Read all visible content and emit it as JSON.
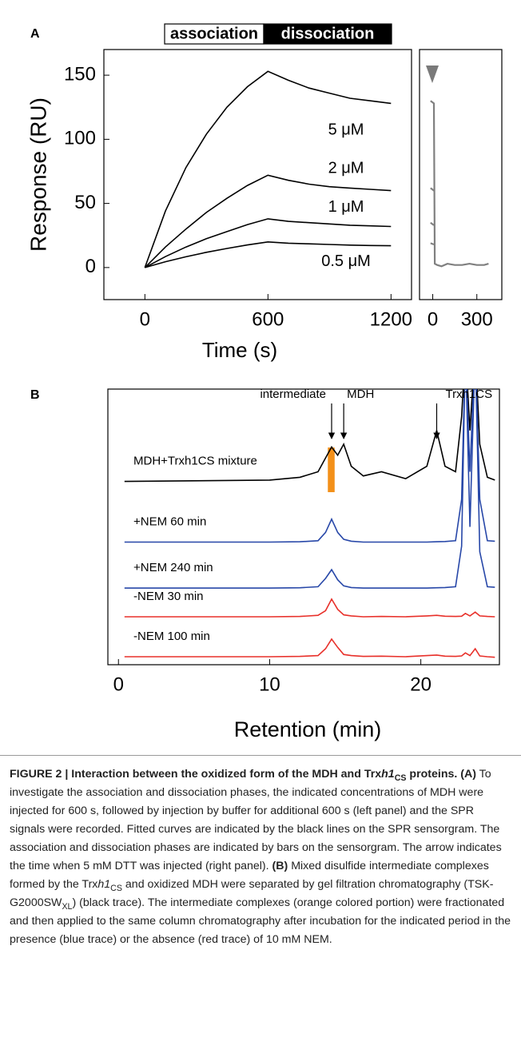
{
  "chart_data": [
    {
      "type": "line",
      "panel_label": "A",
      "ylabel": "Response (RU)",
      "xlabel": "Time (s)",
      "phases": [
        {
          "label": "association",
          "color": "#ffffff"
        },
        {
          "label": "dissociation",
          "color": "#000000"
        }
      ],
      "x": [
        0,
        100,
        200,
        300,
        400,
        500,
        600,
        700,
        800,
        900,
        1000,
        1100,
        1200
      ],
      "series": [
        {
          "name": "5 μM",
          "color": "#000000",
          "values": [
            0,
            44,
            78,
            104,
            125,
            141,
            153,
            146,
            140,
            136,
            132,
            130,
            128
          ]
        },
        {
          "name": "2 μM",
          "color": "#000000",
          "values": [
            0,
            16,
            30,
            43,
            54,
            64,
            72,
            68,
            65,
            63,
            62,
            61,
            60
          ]
        },
        {
          "name": "1 μM",
          "color": "#000000",
          "values": [
            0,
            8.5,
            16,
            22.5,
            28,
            33.5,
            38,
            36,
            35,
            34,
            33,
            32.5,
            32
          ]
        },
        {
          "name": "0.5 μM",
          "color": "#000000",
          "values": [
            0,
            4.5,
            8.4,
            11.9,
            14.9,
            17.6,
            20,
            19,
            18.5,
            18,
            17.5,
            17.2,
            17
          ]
        }
      ],
      "xlim": [
        -200,
        1300
      ],
      "ylim": [
        -25,
        170
      ],
      "xticks": [
        0,
        600,
        1200
      ],
      "yticks": [
        0,
        50,
        100,
        150
      ]
    },
    {
      "type": "line",
      "x": [
        -15,
        8,
        14,
        30,
        60,
        100,
        150,
        200,
        250,
        300,
        350,
        380
      ],
      "series": [
        {
          "color": "#808080",
          "values": [
            130,
            128,
            3,
            2,
            1,
            3,
            2,
            2,
            3,
            2,
            2,
            3
          ]
        },
        {
          "color": "#808080",
          "values": [
            62,
            60,
            null,
            null,
            null,
            null,
            null,
            null,
            null,
            null,
            null,
            null
          ]
        },
        {
          "color": "#808080",
          "values": [
            35,
            33,
            null,
            null,
            null,
            null,
            null,
            null,
            null,
            null,
            null,
            null
          ]
        },
        {
          "color": "#808080",
          "values": [
            19,
            18,
            null,
            null,
            null,
            null,
            null,
            null,
            null,
            null,
            null,
            null
          ]
        }
      ],
      "xlim": [
        -90,
        470
      ],
      "ylim": [
        -25,
        170
      ],
      "xticks": [
        0,
        300
      ]
    },
    {
      "type": "line",
      "panel_label": "B",
      "xlabel": "Retention (min)",
      "x": [
        0.4,
        10,
        12,
        13.2,
        13.7,
        14.1,
        14.5,
        14.9,
        15.4,
        16.2,
        17.4,
        19,
        20.4,
        21.05,
        21.6,
        22.3,
        22.7,
        22.95,
        23.25,
        23.6,
        23.9,
        24.4,
        24.9
      ],
      "series": [
        {
          "name": "MDH+Trxh1CS mixture",
          "color": "#000000",
          "values": [
            66.5,
            67,
            68,
            70,
            75,
            79,
            76,
            80,
            72,
            68.5,
            70,
            67.5,
            72,
            85,
            72,
            70,
            90,
            115,
            85,
            115,
            80,
            68,
            67
          ]
        },
        {
          "name": "+NEM 60 min",
          "color": "#2747a8",
          "values": [
            44.5,
            44.5,
            44.6,
            45,
            48,
            52.8,
            48,
            45.5,
            44.8,
            44.5,
            44.5,
            44.5,
            44.5,
            44.6,
            44.7,
            45,
            60,
            115,
            70,
            115,
            60,
            45,
            44.8
          ]
        },
        {
          "name": "+NEM 240 min",
          "color": "#2747a8",
          "values": [
            27.8,
            27.8,
            27.9,
            28.3,
            31.3,
            34.5,
            30.8,
            28.6,
            28,
            27.8,
            27.8,
            27.8,
            27.8,
            27.9,
            28,
            28.3,
            43,
            115,
            50,
            115,
            41,
            28.3,
            28.1
          ]
        },
        {
          "name": "-NEM 30 min",
          "color": "#e8302a",
          "values": [
            17.4,
            17.4,
            17.5,
            17.9,
            19.6,
            23.8,
            20.1,
            18.1,
            17.7,
            17.4,
            17.5,
            17.4,
            17.7,
            17.9,
            17.6,
            17.5,
            17.6,
            18.6,
            17.7,
            19.1,
            17.7,
            17.5,
            17.4
          ]
        },
        {
          "name": "-NEM 100 min",
          "color": "#e8302a",
          "values": [
            2.9,
            2.9,
            3,
            3.3,
            5.8,
            9.3,
            6.3,
            3.7,
            3.3,
            3,
            3.1,
            2.9,
            3.3,
            3.5,
            3.1,
            3,
            3.2,
            4.3,
            3.3,
            5.8,
            3.2,
            2.9,
            2.7
          ]
        }
      ],
      "highlight": {
        "x": [
          13.85,
          14.3
        ],
        "y": [
          62.6,
          78.8
        ],
        "color": "#f39019"
      },
      "annotations": [
        {
          "text": "intermediate",
          "x": 14.1
        },
        {
          "text": "MDH",
          "x": 14.9
        },
        {
          "text": "Trxh1CS",
          "x": 21.05
        }
      ],
      "xlim": [
        -0.7,
        25.2
      ],
      "ylim": [
        0,
        100
      ],
      "xticks": [
        0,
        10,
        20
      ]
    }
  ],
  "caption": {
    "segments": [
      {
        "text": "FIGURE 2 | Interaction between the oxidized form of the MDH and Trx",
        "style": "b"
      },
      {
        "text": "h1",
        "style": "bi"
      },
      {
        "text": "CS",
        "style": "bsub"
      },
      {
        "text": " proteins. (A)",
        "style": "b"
      },
      {
        "text": " To investigate the association and dissociation phases, the indicated concentrations of MDH were injected for 600 s, followed by injection by buffer for additional 600 s (left panel) and the SPR signals were recorded. Fitted curves are indicated by the black lines on the SPR sensorgram. The association and dissociation phases are indicated by bars on the sensorgram. The arrow indicates the time when 5 mM DTT was injected (right panel). ",
        "style": "regular"
      },
      {
        "text": "(B)",
        "style": "b"
      },
      {
        "text": " Mixed disulfide intermediate complexes formed by the Trx",
        "style": "regular"
      },
      {
        "text": "h1",
        "style": "i"
      },
      {
        "text": "CS",
        "style": "sub"
      },
      {
        "text": " and oxidized MDH were separated by gel filtration chromatography (TSK-G2000SW",
        "style": "regular"
      },
      {
        "text": "XL",
        "style": "sub"
      },
      {
        "text": ") (black trace). The intermediate complexes (orange colored portion) were fractionated and then applied to the same column chromatography after incubation for the indicated period in the presence (blue trace) or the absence (red trace) of 10 mM NEM.",
        "style": "regular"
      }
    ]
  }
}
